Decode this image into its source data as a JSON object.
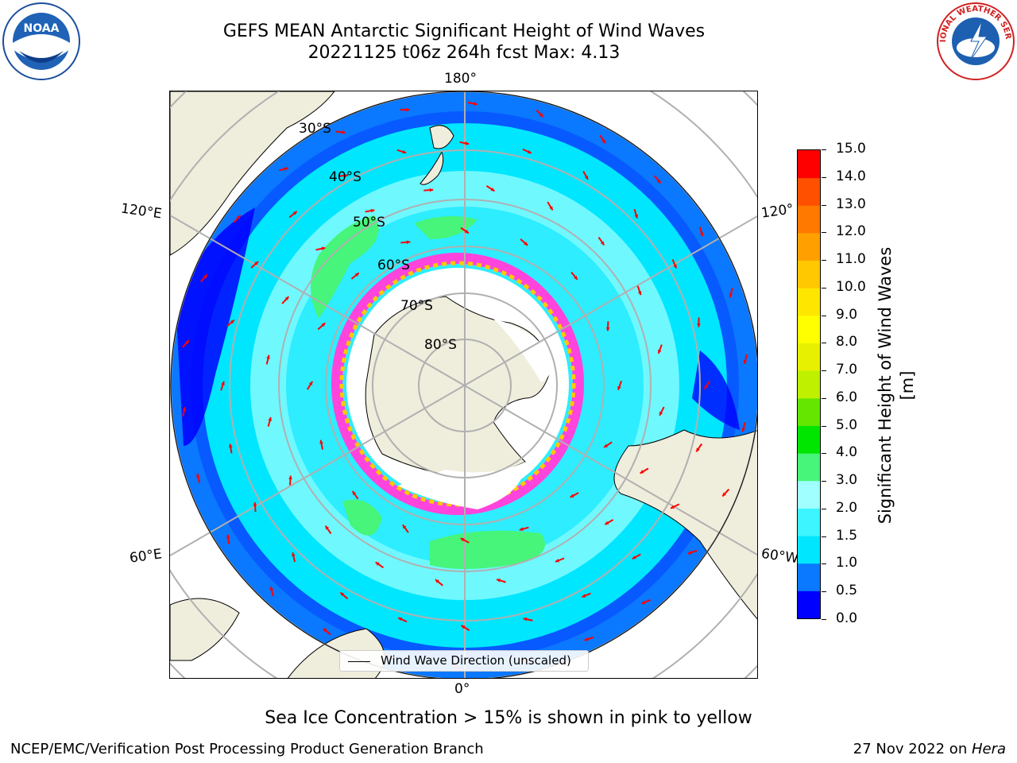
{
  "title_line1": "GEFS MEAN Antarctic Significant Height of Wind Waves",
  "title_line2": "20221125 t06z 264h fcst   Max: 4.13",
  "longitude_labels": {
    "top": "180°",
    "bottom": "0°",
    "upper_left": "120°E",
    "lower_left": "60°E",
    "upper_right": "120°",
    "lower_right": "60°W"
  },
  "latitude_labels": [
    "30°S",
    "40°S",
    "50°S",
    "60°S",
    "70°S",
    "80°S"
  ],
  "colorbar": {
    "label": "Significant Height of Wind Waves [m]",
    "ticks": [
      "0.0",
      "0.5",
      "1.0",
      "1.5",
      "2.0",
      "3.0",
      "4.0",
      "5.0",
      "6.0",
      "7.0",
      "8.0",
      "9.0",
      "10.0",
      "11.0",
      "12.0",
      "13.0",
      "14.0",
      "15.0"
    ],
    "colors": [
      "#0000ff",
      "#0a78ff",
      "#00e6ff",
      "#3cf5ff",
      "#a0ffff",
      "#46f57a",
      "#00e600",
      "#64e600",
      "#bef000",
      "#e6f000",
      "#ffff00",
      "#ffe600",
      "#ffc800",
      "#ffa000",
      "#ff7800",
      "#ff5000",
      "#ff0000"
    ]
  },
  "legend_text": "Wind Wave Direction (unscaled)",
  "caption": "Sea Ice Concentration > 15% is shown in pink to yellow",
  "footer_left": "NCEP/EMC/Verification Post Processing Product Generation Branch",
  "footer_right_date": "27 Nov 2022 on ",
  "footer_right_host": "Hera",
  "colors": {
    "land": "#efeddc",
    "ice": "#ffffff",
    "sea_ice_edge": "#ff44dd",
    "arrow": "#ff0000",
    "grid": "#b0b0b0"
  },
  "logos": {
    "noaa": "NOAA",
    "nws": "NATIONAL WEATHER SERVICE"
  }
}
